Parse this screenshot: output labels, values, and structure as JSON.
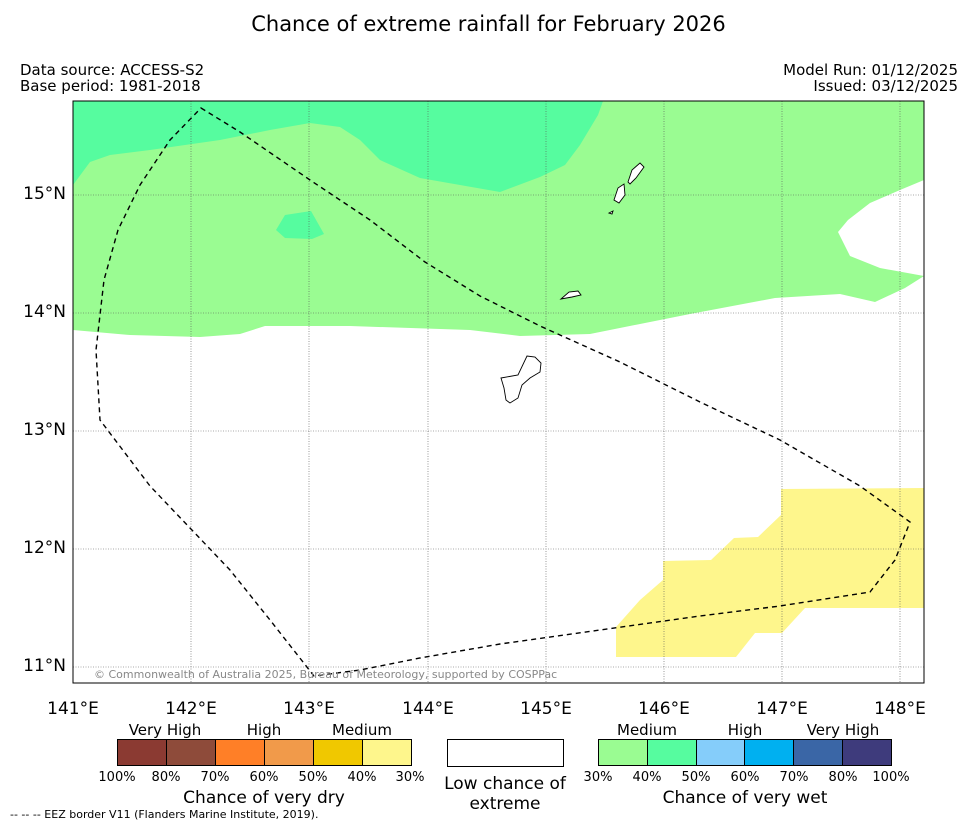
{
  "title": "Chance of extreme rainfall for February 2026",
  "data_source": "Data source: ACCESS-S2",
  "base_period": "Base period: 1981-2018",
  "model_run": "Model Run: 01/12/2025",
  "issued": "Issued: 03/12/2025",
  "map": {
    "lat_ticks": [
      "15°N",
      "14°N",
      "13°N",
      "12°N",
      "11°N"
    ],
    "lon_ticks": [
      "141°E",
      "142°E",
      "143°E",
      "144°E",
      "145°E",
      "146°E",
      "147°E",
      "148°E"
    ],
    "copyright": "© Commonwealth of Australia 2025, Bureau of Meteorology, supported by COSPPac"
  },
  "legend": {
    "dry": {
      "categories": [
        "Very High",
        "High",
        "Medium"
      ],
      "colors": [
        "#8b3a32",
        "#8e4b3a",
        "#ff7f27",
        "#f19a4a",
        "#f0c800",
        "#fef68c"
      ],
      "percents": [
        "100%",
        "80%",
        "70%",
        "60%",
        "50%",
        "40%",
        "30%"
      ],
      "title": "Chance of very dry"
    },
    "low": {
      "label": "Low chance of extreme",
      "color": "#ffffff"
    },
    "wet": {
      "categories": [
        "Medium",
        "High",
        "Very High"
      ],
      "colors": [
        "#9afc92",
        "#56fc9f",
        "#85cdfa",
        "#00b0f0",
        "#3a66a6",
        "#3e3b7c"
      ],
      "percents": [
        "30%",
        "40%",
        "50%",
        "60%",
        "70%",
        "80%",
        "100%"
      ],
      "title": "Chance of very wet"
    }
  },
  "eez_note": "--  --  -- EEZ border V11 (Flanders Marine Institute, 2019)."
}
